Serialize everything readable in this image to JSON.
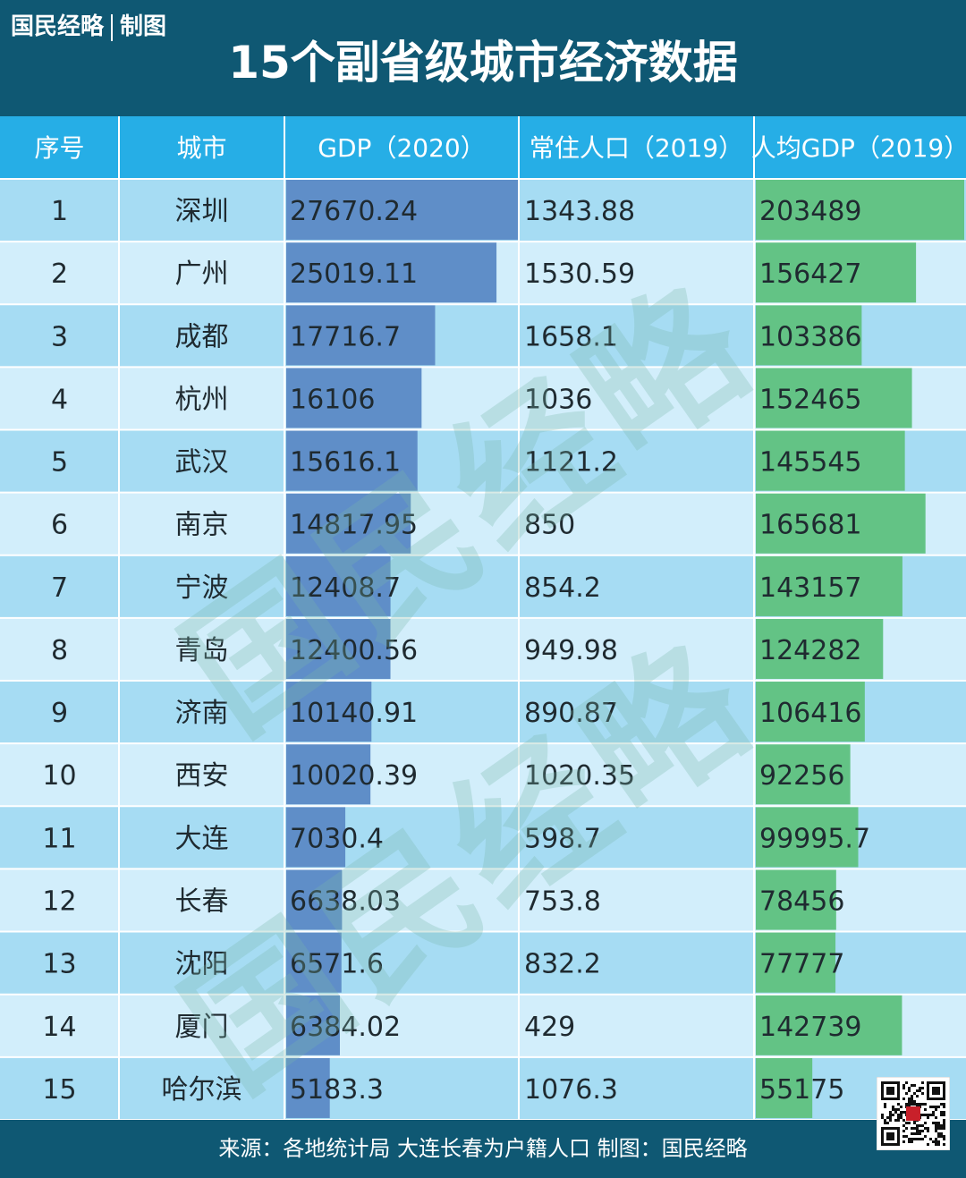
{
  "header": {
    "brand": "国民经略",
    "brand_suffix": "制图",
    "title": "15个副省级城市经济数据"
  },
  "watermark_text": "国民经略",
  "chart_data": {
    "type": "table",
    "title": "15个副省级城市经济数据",
    "columns": [
      "序号",
      "城市",
      "GDP（2020）",
      "常住人口（2019）",
      "人均GDP（2019）"
    ],
    "rows": [
      {
        "rank": "1",
        "city": "深圳",
        "gdp": "27670.24",
        "pop": "1343.88",
        "per": "203489"
      },
      {
        "rank": "2",
        "city": "广州",
        "gdp": "25019.11",
        "pop": "1530.59",
        "per": "156427"
      },
      {
        "rank": "3",
        "city": "成都",
        "gdp": "17716.7",
        "pop": "1658.1",
        "per": "103386"
      },
      {
        "rank": "4",
        "city": "杭州",
        "gdp": "16106",
        "pop": "1036",
        "per": "152465"
      },
      {
        "rank": "5",
        "city": "武汉",
        "gdp": "15616.1",
        "pop": "1121.2",
        "per": "145545"
      },
      {
        "rank": "6",
        "city": "南京",
        "gdp": "14817.95",
        "pop": "850",
        "per": "165681"
      },
      {
        "rank": "7",
        "city": "宁波",
        "gdp": "12408.7",
        "pop": "854.2",
        "per": "143157"
      },
      {
        "rank": "8",
        "city": "青岛",
        "gdp": "12400.56",
        "pop": "949.98",
        "per": "124282"
      },
      {
        "rank": "9",
        "city": "济南",
        "gdp": "10140.91",
        "pop": "890.87",
        "per": "106416"
      },
      {
        "rank": "10",
        "city": "西安",
        "gdp": "10020.39",
        "pop": "1020.35",
        "per": "92256"
      },
      {
        "rank": "11",
        "city": "大连",
        "gdp": "7030.4",
        "pop": "598.7",
        "per": "99995.7"
      },
      {
        "rank": "12",
        "city": "长春",
        "gdp": "6638.03",
        "pop": "753.8",
        "per": "78456"
      },
      {
        "rank": "13",
        "city": "沈阳",
        "gdp": "6571.6",
        "pop": "832.2",
        "per": "77777"
      },
      {
        "rank": "14",
        "city": "厦门",
        "gdp": "6384.02",
        "pop": "429",
        "per": "142739"
      },
      {
        "rank": "15",
        "city": "哈尔滨",
        "gdp": "5183.3",
        "pop": "1076.3",
        "per": "55175"
      }
    ],
    "gdp_bar_color": "#5f8ec8",
    "per_capita_bar_color": "#63c385"
  },
  "colors": {
    "header_bg": "#0f5873",
    "column_header_bg": "#26aee6",
    "row_light": "#d2eefb",
    "row_dark": "#a6dcf3",
    "watermark": "#78b7a9"
  },
  "footer": {
    "text": "来源：各地统计局 大连长春为户籍人口 制图：国民经略"
  },
  "qr_icon": "qr-code-icon"
}
